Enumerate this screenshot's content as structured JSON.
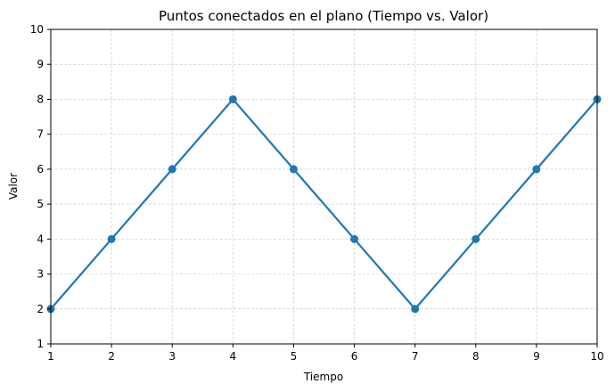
{
  "chart_data": {
    "type": "line",
    "title": "Puntos conectados en el plano (Tiempo vs. Valor)",
    "xlabel": "Tiempo",
    "ylabel": "Valor",
    "x": [
      1,
      2,
      3,
      4,
      5,
      6,
      7,
      8,
      9,
      10
    ],
    "series": [
      {
        "values": [
          2,
          4,
          6,
          8,
          6,
          4,
          2,
          4,
          6,
          8
        ]
      }
    ],
    "xlim": [
      1,
      10
    ],
    "ylim": [
      1,
      10
    ],
    "xticks": [
      1,
      2,
      3,
      4,
      5,
      6,
      7,
      8,
      9,
      10
    ],
    "yticks": [
      1,
      2,
      3,
      4,
      5,
      6,
      7,
      8,
      9,
      10
    ],
    "grid": true,
    "marker": "circle",
    "line_color": "#1f77b4",
    "grid_color": "#cccccc"
  }
}
